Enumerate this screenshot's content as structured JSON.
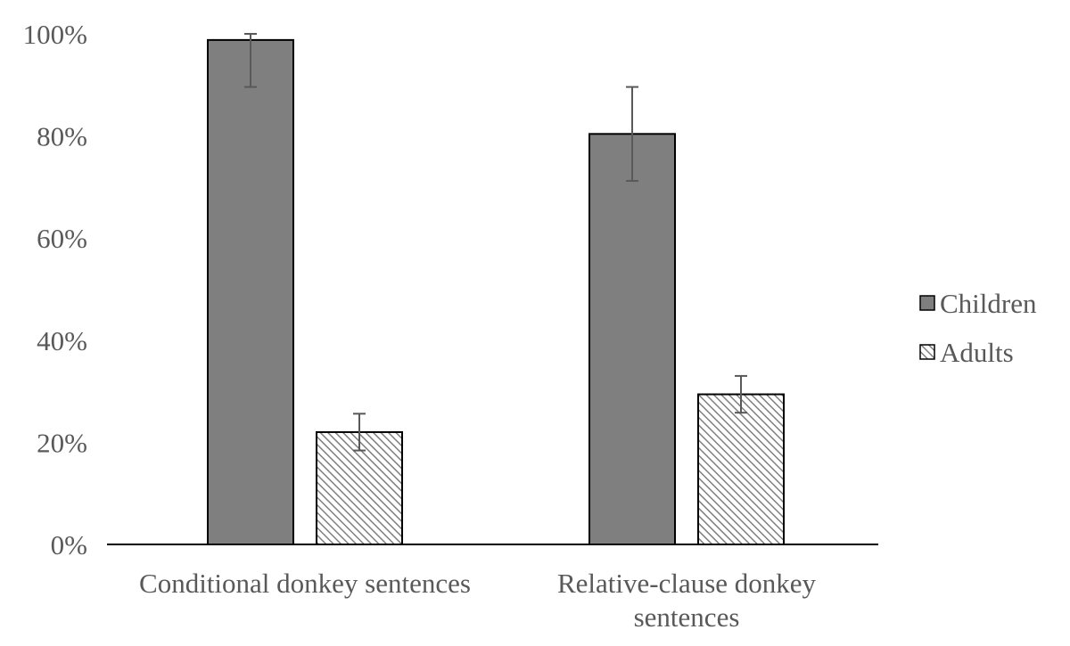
{
  "chart_data": {
    "type": "bar",
    "title": "",
    "xlabel": "",
    "ylabel": "",
    "categories": [
      [
        "Conditional donkey sentences"
      ],
      [
        "Relative-clause donkey",
        "sentences"
      ]
    ],
    "series": [
      {
        "name": "Children",
        "values": [
          98.8,
          80.4
        ],
        "error_low": [
          89.6,
          71.2
        ],
        "error_high": [
          100.0,
          89.6
        ],
        "fill": "#7f7f7f",
        "pattern": "solid"
      },
      {
        "name": "Adults",
        "values": [
          22.0,
          29.4
        ],
        "error_low": [
          18.4,
          25.8
        ],
        "error_high": [
          25.6,
          33.0
        ],
        "fill": "#ffffff",
        "pattern": "diagonal-hatch"
      }
    ],
    "ylim": [
      0,
      100
    ],
    "yticks": [
      "0%",
      "20%",
      "40%",
      "60%",
      "80%",
      "100%"
    ],
    "grid": false,
    "legend_position": "right",
    "colors": {
      "axis": "#000000",
      "text": "#595959",
      "bar_outline": "#000000",
      "error_bar": "#595959",
      "hatch": "#7f7f7f"
    }
  }
}
